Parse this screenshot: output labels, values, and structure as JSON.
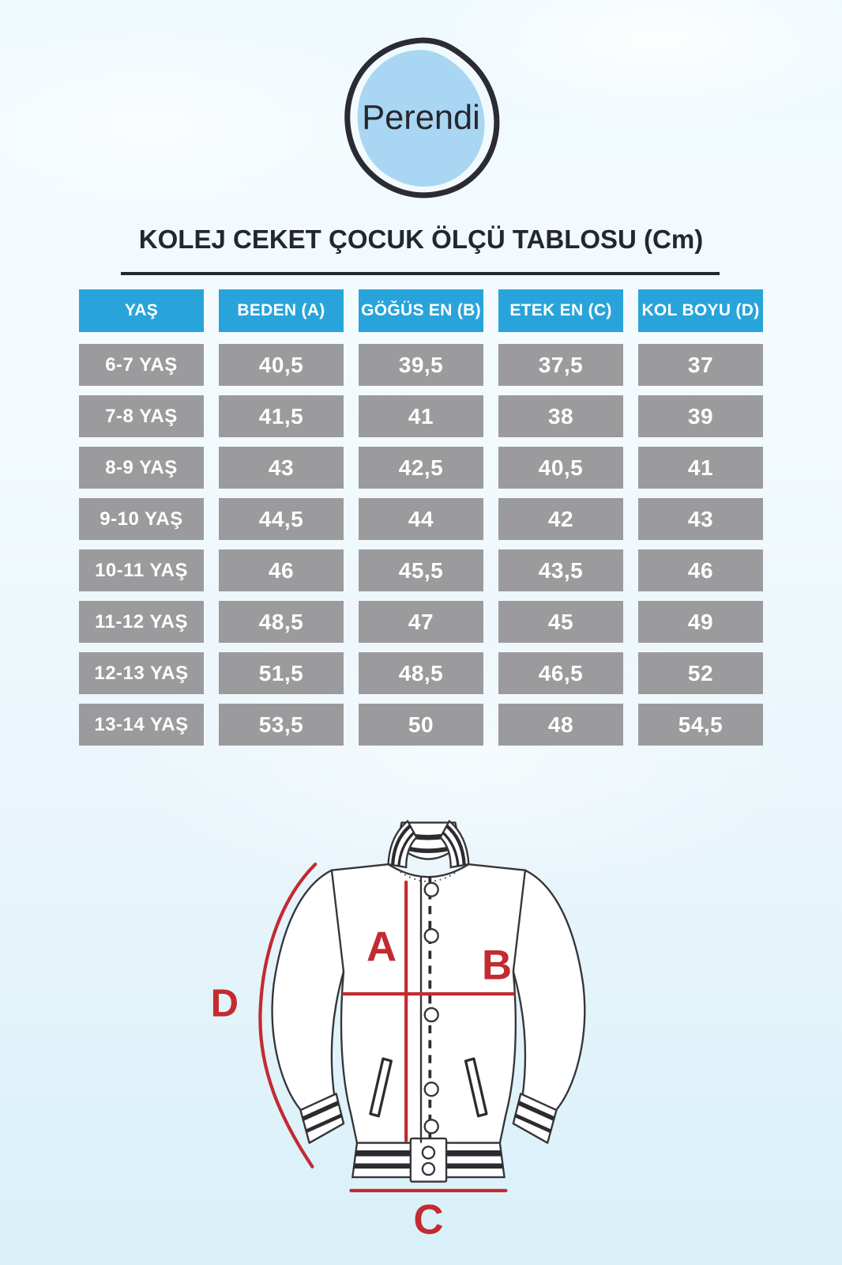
{
  "brand": {
    "logo_text": "Perendi"
  },
  "title": "KOLEJ CEKET ÇOCUK ÖLÇÜ TABLOSU (Cm)",
  "table": {
    "headers": [
      "YAŞ",
      "BEDEN (A)",
      "GÖĞÜS EN (B)",
      "ETEK EN (C)",
      "KOL BOYU (D)"
    ],
    "rows": [
      [
        "6-7 YAŞ",
        "40,5",
        "39,5",
        "37,5",
        "37"
      ],
      [
        "7-8 YAŞ",
        "41,5",
        "41",
        "38",
        "39"
      ],
      [
        "8-9 YAŞ",
        "43",
        "42,5",
        "40,5",
        "41"
      ],
      [
        "9-10 YAŞ",
        "44,5",
        "44",
        "42",
        "43"
      ],
      [
        "10-11 YAŞ",
        "46",
        "45,5",
        "43,5",
        "46"
      ],
      [
        "11-12 YAŞ",
        "48,5",
        "47",
        "45",
        "49"
      ],
      [
        "12-13 YAŞ",
        "51,5",
        "48,5",
        "46,5",
        "52"
      ],
      [
        "13-14 YAŞ",
        "53,5",
        "50",
        "48",
        "54,5"
      ]
    ]
  },
  "diagram": {
    "labels": {
      "a": "A",
      "b": "B",
      "c": "C",
      "d": "D"
    }
  },
  "colors": {
    "header_blue": "#29a4da",
    "cell_gray": "#9b9b9d",
    "annotation_red": "#c22b31",
    "logo_blue": "#a9d6f2",
    "ink": "#26262e"
  }
}
